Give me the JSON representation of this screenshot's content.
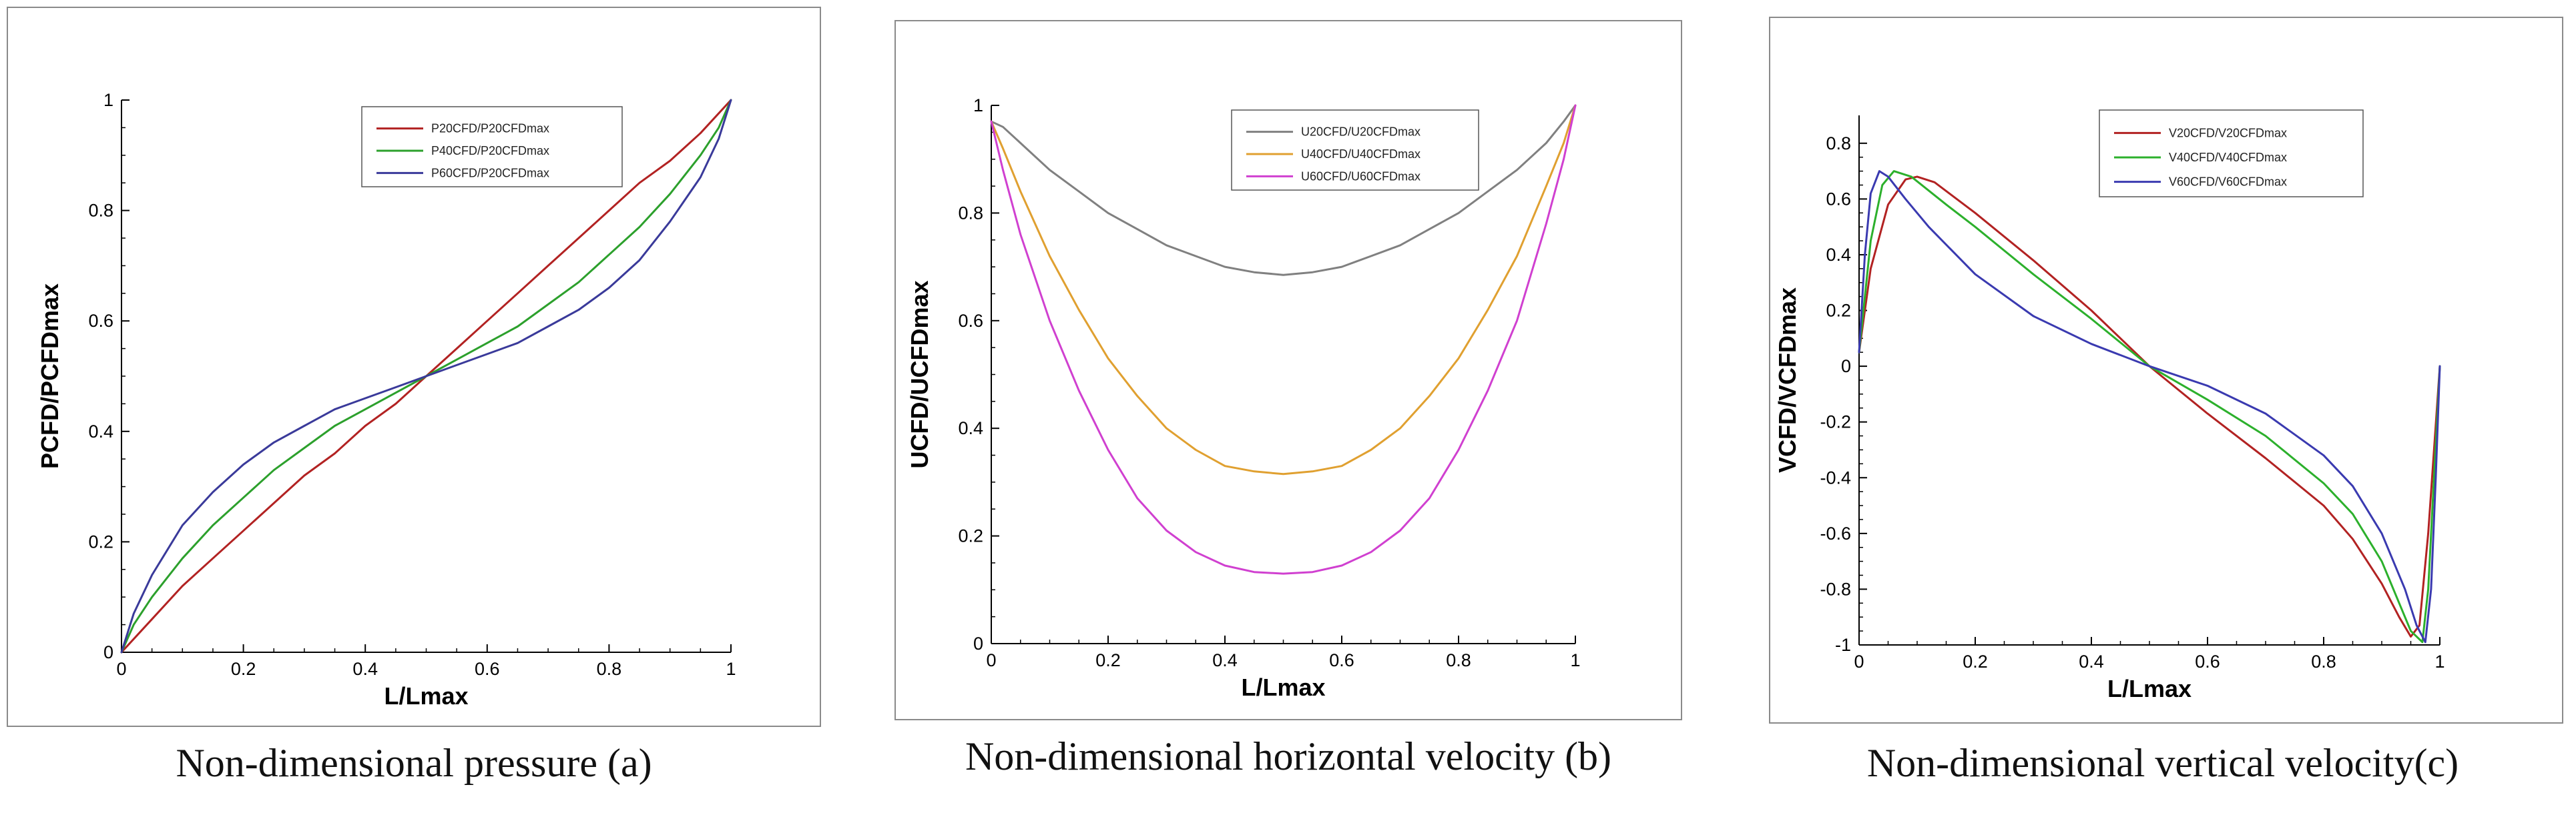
{
  "chart_data": [
    {
      "type": "line",
      "id": "a",
      "caption": "Non-dimensional pressure (a)",
      "xlabel": "L/Lmax",
      "ylabel": "PCFD/PCFDmax",
      "xlim": [
        0,
        1
      ],
      "ylim": [
        0,
        1
      ],
      "xticks": [
        0,
        0.2,
        0.4,
        0.6,
        0.8,
        1
      ],
      "xtick_labels": [
        "0",
        "0.2",
        "0.4",
        "0.6",
        "0.8",
        "1"
      ],
      "yticks": [
        0,
        0.2,
        0.4,
        0.6,
        0.8,
        1
      ],
      "ytick_labels": [
        "0",
        "0.2",
        "0.4",
        "0.6",
        "0.8",
        "1"
      ],
      "legend_position": "top-right",
      "series": [
        {
          "name": "P20CFD/P20CFDmax",
          "color": "#b22222",
          "x": [
            0,
            0.05,
            0.1,
            0.15,
            0.2,
            0.25,
            0.3,
            0.35,
            0.4,
            0.45,
            0.5,
            0.55,
            0.6,
            0.65,
            0.7,
            0.75,
            0.8,
            0.85,
            0.9,
            0.95,
            1
          ],
          "y": [
            0,
            0.06,
            0.12,
            0.17,
            0.22,
            0.27,
            0.32,
            0.36,
            0.41,
            0.45,
            0.5,
            0.55,
            0.6,
            0.65,
            0.7,
            0.75,
            0.8,
            0.85,
            0.89,
            0.94,
            1
          ]
        },
        {
          "name": "P40CFD/P20CFDmax",
          "color": "#2ca02c",
          "x": [
            0,
            0.02,
            0.05,
            0.1,
            0.15,
            0.2,
            0.25,
            0.3,
            0.35,
            0.4,
            0.45,
            0.5,
            0.55,
            0.6,
            0.65,
            0.7,
            0.75,
            0.8,
            0.85,
            0.9,
            0.95,
            0.98,
            1
          ],
          "y": [
            0,
            0.05,
            0.1,
            0.17,
            0.23,
            0.28,
            0.33,
            0.37,
            0.41,
            0.44,
            0.47,
            0.5,
            0.53,
            0.56,
            0.59,
            0.63,
            0.67,
            0.72,
            0.77,
            0.83,
            0.9,
            0.95,
            1
          ]
        },
        {
          "name": "P60CFD/P20CFDmax",
          "color": "#3a3a9a",
          "x": [
            0,
            0.02,
            0.05,
            0.1,
            0.15,
            0.2,
            0.25,
            0.3,
            0.35,
            0.4,
            0.45,
            0.5,
            0.55,
            0.6,
            0.65,
            0.7,
            0.75,
            0.8,
            0.85,
            0.9,
            0.95,
            0.98,
            1
          ],
          "y": [
            0,
            0.07,
            0.14,
            0.23,
            0.29,
            0.34,
            0.38,
            0.41,
            0.44,
            0.46,
            0.48,
            0.5,
            0.52,
            0.54,
            0.56,
            0.59,
            0.62,
            0.66,
            0.71,
            0.78,
            0.86,
            0.93,
            1
          ]
        }
      ]
    },
    {
      "type": "line",
      "id": "b",
      "caption": "Non-dimensional horizontal velocity (b)",
      "xlabel": "L/Lmax",
      "ylabel": "UCFD/UCFDmax",
      "xlim": [
        0,
        1
      ],
      "ylim": [
        0,
        1
      ],
      "xticks": [
        0,
        0.2,
        0.4,
        0.6,
        0.8,
        1
      ],
      "xtick_labels": [
        "0",
        "0.2",
        "0.4",
        "0.6",
        "0.8",
        "1"
      ],
      "yticks": [
        0,
        0.2,
        0.4,
        0.6,
        0.8,
        1
      ],
      "ytick_labels": [
        "0",
        "0.2",
        "0.4",
        "0.6",
        "0.8",
        "1"
      ],
      "legend_position": "top-right",
      "series": [
        {
          "name": "U20CFD/U20CFDmax",
          "color": "#808080",
          "x": [
            0,
            0.02,
            0.05,
            0.1,
            0.15,
            0.2,
            0.25,
            0.3,
            0.35,
            0.4,
            0.45,
            0.5,
            0.55,
            0.6,
            0.65,
            0.7,
            0.75,
            0.8,
            0.85,
            0.9,
            0.95,
            0.98,
            1
          ],
          "y": [
            0.97,
            0.96,
            0.93,
            0.88,
            0.84,
            0.8,
            0.77,
            0.74,
            0.72,
            0.7,
            0.69,
            0.685,
            0.69,
            0.7,
            0.72,
            0.74,
            0.77,
            0.8,
            0.84,
            0.88,
            0.93,
            0.97,
            1
          ]
        },
        {
          "name": "U40CFD/U40CFDmax",
          "color": "#e0a030",
          "x": [
            0,
            0.02,
            0.05,
            0.1,
            0.15,
            0.2,
            0.25,
            0.3,
            0.35,
            0.4,
            0.45,
            0.5,
            0.55,
            0.6,
            0.65,
            0.7,
            0.75,
            0.8,
            0.85,
            0.9,
            0.95,
            0.98,
            1
          ],
          "y": [
            0.97,
            0.92,
            0.84,
            0.72,
            0.62,
            0.53,
            0.46,
            0.4,
            0.36,
            0.33,
            0.32,
            0.315,
            0.32,
            0.33,
            0.36,
            0.4,
            0.46,
            0.53,
            0.62,
            0.72,
            0.85,
            0.93,
            1
          ]
        },
        {
          "name": "U60CFD/U60CFDmax",
          "color": "#d040d0",
          "x": [
            0,
            0.02,
            0.05,
            0.1,
            0.15,
            0.2,
            0.25,
            0.3,
            0.35,
            0.4,
            0.45,
            0.5,
            0.55,
            0.6,
            0.65,
            0.7,
            0.75,
            0.8,
            0.85,
            0.9,
            0.95,
            0.98,
            1
          ],
          "y": [
            0.97,
            0.88,
            0.76,
            0.6,
            0.47,
            0.36,
            0.27,
            0.21,
            0.17,
            0.145,
            0.133,
            0.13,
            0.133,
            0.145,
            0.17,
            0.21,
            0.27,
            0.36,
            0.47,
            0.6,
            0.78,
            0.9,
            1
          ]
        }
      ]
    },
    {
      "type": "line",
      "id": "c",
      "caption": "Non-dimensional vertical velocity(c)",
      "xlabel": "L/Lmax",
      "ylabel": "VCFD/VCFDmax",
      "xlim": [
        0,
        1
      ],
      "ylim": [
        -1,
        0.9
      ],
      "xticks": [
        0,
        0.2,
        0.4,
        0.6,
        0.8,
        1
      ],
      "xtick_labels": [
        "0",
        "0.2",
        "0.4",
        "0.6",
        "0.8",
        "1"
      ],
      "yticks": [
        -1,
        -0.8,
        -0.6,
        -0.4,
        -0.2,
        0,
        0.2,
        0.4,
        0.6,
        0.8
      ],
      "ytick_labels": [
        "-1",
        "-0.8",
        "-0.6",
        "-0.4",
        "-0.2",
        "0",
        "0.2",
        "0.4",
        "0.6",
        "0.8"
      ],
      "legend_position": "top-right",
      "series": [
        {
          "name": "V20CFD/V20CFDmax",
          "color": "#b22222",
          "x": [
            0,
            0.02,
            0.05,
            0.08,
            0.1,
            0.13,
            0.2,
            0.3,
            0.4,
            0.5,
            0.6,
            0.7,
            0.8,
            0.85,
            0.9,
            0.93,
            0.95,
            0.965,
            0.98,
            0.99,
            1
          ],
          "y": [
            0.05,
            0.35,
            0.58,
            0.67,
            0.68,
            0.66,
            0.55,
            0.38,
            0.2,
            0.0,
            -0.17,
            -0.33,
            -0.5,
            -0.62,
            -0.78,
            -0.9,
            -0.97,
            -0.93,
            -0.6,
            -0.3,
            0
          ]
        },
        {
          "name": "V40CFD/V40CFDmax",
          "color": "#2cb02c",
          "x": [
            0,
            0.02,
            0.04,
            0.06,
            0.09,
            0.15,
            0.2,
            0.3,
            0.4,
            0.5,
            0.6,
            0.7,
            0.8,
            0.85,
            0.9,
            0.93,
            0.95,
            0.97,
            0.98,
            0.99,
            1
          ],
          "y": [
            0.05,
            0.45,
            0.65,
            0.7,
            0.68,
            0.58,
            0.5,
            0.33,
            0.17,
            0.0,
            -0.12,
            -0.25,
            -0.42,
            -0.53,
            -0.7,
            -0.85,
            -0.95,
            -0.99,
            -0.8,
            -0.4,
            0
          ]
        },
        {
          "name": "V60CFD/V60CFDmax",
          "color": "#3a3ab0",
          "x": [
            0,
            0.01,
            0.02,
            0.035,
            0.05,
            0.08,
            0.12,
            0.2,
            0.3,
            0.4,
            0.5,
            0.6,
            0.7,
            0.8,
            0.85,
            0.9,
            0.94,
            0.96,
            0.975,
            0.985,
            0.993,
            1
          ],
          "y": [
            0.05,
            0.4,
            0.62,
            0.7,
            0.68,
            0.6,
            0.5,
            0.33,
            0.18,
            0.08,
            0.0,
            -0.07,
            -0.17,
            -0.32,
            -0.43,
            -0.6,
            -0.8,
            -0.93,
            -0.99,
            -0.8,
            -0.4,
            0
          ]
        }
      ]
    }
  ]
}
